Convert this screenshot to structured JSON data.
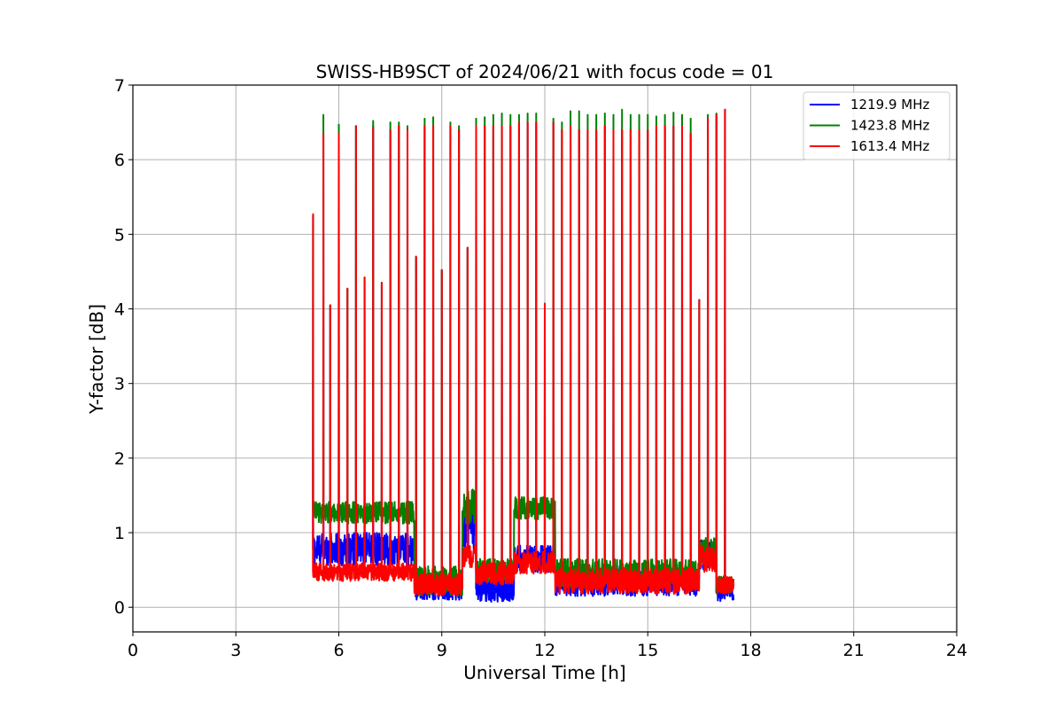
{
  "chart_data": {
    "type": "line",
    "title": "SWISS-HB9SCT of 2024/06/21 with focus code = 01",
    "xlabel": "Universal Time [h]",
    "ylabel": "Y-factor [dB]",
    "xlim": [
      0,
      24
    ],
    "ylim": [
      -0.33,
      7
    ],
    "xticks": [
      0,
      3,
      6,
      9,
      12,
      15,
      18,
      21,
      24
    ],
    "yticks": [
      0,
      1,
      2,
      3,
      4,
      5,
      6,
      7
    ],
    "grid": true,
    "legend_position": "top-right",
    "series": [
      {
        "name": "1219.9 MHz",
        "color": "#0000ff",
        "segments": [
          {
            "start": 5.25,
            "end": 8.2,
            "base": 0.78,
            "noise": 0.22
          },
          {
            "start": 8.2,
            "end": 9.6,
            "base": 0.25,
            "noise": 0.15
          },
          {
            "start": 9.6,
            "end": 10.0,
            "base": 1.1,
            "noise": 0.35
          },
          {
            "start": 10.0,
            "end": 11.1,
            "base": 0.25,
            "noise": 0.18
          },
          {
            "start": 11.1,
            "end": 12.3,
            "base": 0.65,
            "noise": 0.18
          },
          {
            "start": 12.3,
            "end": 16.5,
            "base": 0.35,
            "noise": 0.2
          },
          {
            "start": 16.5,
            "end": 17.0,
            "base": 0.7,
            "noise": 0.2
          },
          {
            "start": 17.0,
            "end": 17.5,
            "base": 0.2,
            "noise": 0.12
          }
        ],
        "spikes": [
          [
            5.25,
            5.25
          ],
          [
            5.55,
            6.35
          ],
          [
            5.75,
            4.05
          ],
          [
            6.0,
            6.35
          ],
          [
            6.25,
            4.27
          ],
          [
            6.5,
            6.45
          ],
          [
            6.75,
            4.42
          ],
          [
            7.0,
            6.45
          ],
          [
            7.25,
            4.35
          ],
          [
            7.5,
            6.4
          ],
          [
            7.75,
            6.45
          ],
          [
            8.0,
            6.4
          ],
          [
            8.25,
            4.7
          ],
          [
            8.5,
            6.45
          ],
          [
            8.75,
            6.45
          ],
          [
            9.0,
            4.52
          ],
          [
            9.25,
            6.45
          ],
          [
            9.5,
            6.4
          ],
          [
            9.75,
            4.82
          ],
          [
            10.0,
            6.45
          ],
          [
            10.25,
            6.45
          ],
          [
            10.5,
            6.45
          ],
          [
            10.75,
            6.45
          ],
          [
            11.0,
            6.45
          ],
          [
            11.25,
            6.5
          ],
          [
            11.5,
            6.5
          ],
          [
            11.75,
            6.5
          ],
          [
            12.0,
            4.07
          ],
          [
            12.25,
            6.5
          ],
          [
            12.5,
            6.4
          ],
          [
            12.75,
            6.45
          ],
          [
            13.0,
            6.4
          ],
          [
            13.25,
            6.4
          ],
          [
            13.5,
            6.4
          ],
          [
            13.75,
            6.45
          ],
          [
            14.0,
            6.4
          ],
          [
            14.25,
            6.4
          ],
          [
            14.5,
            6.4
          ],
          [
            14.75,
            6.4
          ],
          [
            15.0,
            6.4
          ],
          [
            15.25,
            6.45
          ],
          [
            15.5,
            6.45
          ],
          [
            15.75,
            6.45
          ],
          [
            16.0,
            6.45
          ],
          [
            16.25,
            6.35
          ],
          [
            16.5,
            4.12
          ],
          [
            16.75,
            6.55
          ],
          [
            17.0,
            6.6
          ],
          [
            17.25,
            6.67
          ]
        ]
      },
      {
        "name": "1423.8 MHz",
        "color": "#008000",
        "segments": [
          {
            "start": 5.25,
            "end": 8.2,
            "base": 1.27,
            "noise": 0.15
          },
          {
            "start": 8.2,
            "end": 9.6,
            "base": 0.35,
            "noise": 0.2
          },
          {
            "start": 9.6,
            "end": 10.0,
            "base": 1.35,
            "noise": 0.25
          },
          {
            "start": 10.0,
            "end": 11.1,
            "base": 0.5,
            "noise": 0.15
          },
          {
            "start": 11.1,
            "end": 12.3,
            "base": 1.33,
            "noise": 0.15
          },
          {
            "start": 12.3,
            "end": 16.5,
            "base": 0.45,
            "noise": 0.2
          },
          {
            "start": 16.5,
            "end": 17.0,
            "base": 0.75,
            "noise": 0.18
          },
          {
            "start": 17.0,
            "end": 17.5,
            "base": 0.3,
            "noise": 0.12
          }
        ],
        "spikes": [
          [
            5.25,
            5.25
          ],
          [
            5.55,
            6.6
          ],
          [
            5.75,
            4.05
          ],
          [
            6.0,
            6.47
          ],
          [
            6.25,
            4.27
          ],
          [
            6.5,
            6.45
          ],
          [
            6.75,
            4.42
          ],
          [
            7.0,
            6.52
          ],
          [
            7.25,
            4.35
          ],
          [
            7.5,
            6.5
          ],
          [
            7.75,
            6.5
          ],
          [
            8.0,
            6.45
          ],
          [
            8.25,
            4.7
          ],
          [
            8.5,
            6.55
          ],
          [
            8.75,
            6.57
          ],
          [
            9.0,
            4.52
          ],
          [
            9.25,
            6.5
          ],
          [
            9.5,
            6.45
          ],
          [
            9.75,
            4.82
          ],
          [
            10.0,
            6.55
          ],
          [
            10.25,
            6.57
          ],
          [
            10.5,
            6.6
          ],
          [
            10.75,
            6.62
          ],
          [
            11.0,
            6.6
          ],
          [
            11.25,
            6.6
          ],
          [
            11.5,
            6.62
          ],
          [
            11.75,
            6.62
          ],
          [
            12.0,
            4.07
          ],
          [
            12.25,
            6.55
          ],
          [
            12.5,
            6.5
          ],
          [
            12.75,
            6.65
          ],
          [
            13.0,
            6.65
          ],
          [
            13.25,
            6.6
          ],
          [
            13.5,
            6.6
          ],
          [
            13.75,
            6.62
          ],
          [
            14.0,
            6.6
          ],
          [
            14.25,
            6.67
          ],
          [
            14.5,
            6.6
          ],
          [
            14.75,
            6.6
          ],
          [
            15.0,
            6.6
          ],
          [
            15.25,
            6.58
          ],
          [
            15.5,
            6.6
          ],
          [
            15.75,
            6.63
          ],
          [
            16.0,
            6.6
          ],
          [
            16.25,
            6.55
          ],
          [
            16.5,
            4.12
          ],
          [
            16.75,
            6.6
          ],
          [
            17.0,
            6.62
          ],
          [
            17.25,
            6.67
          ]
        ]
      },
      {
        "name": "1613.4 MHz",
        "color": "#ff0000",
        "segments": [
          {
            "start": 5.25,
            "end": 8.2,
            "base": 0.47,
            "noise": 0.12
          },
          {
            "start": 8.2,
            "end": 9.6,
            "base": 0.3,
            "noise": 0.15
          },
          {
            "start": 9.6,
            "end": 10.0,
            "base": 0.68,
            "noise": 0.15
          },
          {
            "start": 10.0,
            "end": 11.1,
            "base": 0.45,
            "noise": 0.15
          },
          {
            "start": 11.1,
            "end": 12.3,
            "base": 0.6,
            "noise": 0.15
          },
          {
            "start": 12.3,
            "end": 16.5,
            "base": 0.35,
            "noise": 0.17
          },
          {
            "start": 16.5,
            "end": 17.0,
            "base": 0.65,
            "noise": 0.18
          },
          {
            "start": 17.0,
            "end": 17.5,
            "base": 0.3,
            "noise": 0.12
          }
        ],
        "spikes": [
          [
            5.25,
            5.27
          ],
          [
            5.55,
            6.35
          ],
          [
            5.75,
            4.05
          ],
          [
            6.0,
            6.35
          ],
          [
            6.25,
            4.27
          ],
          [
            6.5,
            6.45
          ],
          [
            6.75,
            4.42
          ],
          [
            7.0,
            6.42
          ],
          [
            7.25,
            4.35
          ],
          [
            7.5,
            6.4
          ],
          [
            7.75,
            6.45
          ],
          [
            8.0,
            6.4
          ],
          [
            8.25,
            4.7
          ],
          [
            8.5,
            6.45
          ],
          [
            8.75,
            6.45
          ],
          [
            9.0,
            4.52
          ],
          [
            9.25,
            6.45
          ],
          [
            9.5,
            6.4
          ],
          [
            9.75,
            4.82
          ],
          [
            10.0,
            6.45
          ],
          [
            10.25,
            6.45
          ],
          [
            10.5,
            6.45
          ],
          [
            10.75,
            6.45
          ],
          [
            11.0,
            6.45
          ],
          [
            11.25,
            6.5
          ],
          [
            11.5,
            6.5
          ],
          [
            11.75,
            6.5
          ],
          [
            12.0,
            4.07
          ],
          [
            12.25,
            6.5
          ],
          [
            12.5,
            6.4
          ],
          [
            12.75,
            6.45
          ],
          [
            13.0,
            6.4
          ],
          [
            13.25,
            6.4
          ],
          [
            13.5,
            6.4
          ],
          [
            13.75,
            6.45
          ],
          [
            14.0,
            6.4
          ],
          [
            14.25,
            6.4
          ],
          [
            14.5,
            6.4
          ],
          [
            14.75,
            6.4
          ],
          [
            15.0,
            6.4
          ],
          [
            15.25,
            6.45
          ],
          [
            15.5,
            6.45
          ],
          [
            15.75,
            6.45
          ],
          [
            16.0,
            6.45
          ],
          [
            16.25,
            6.35
          ],
          [
            16.5,
            4.12
          ],
          [
            16.75,
            6.55
          ],
          [
            17.0,
            6.6
          ],
          [
            17.25,
            6.67
          ]
        ]
      }
    ]
  }
}
